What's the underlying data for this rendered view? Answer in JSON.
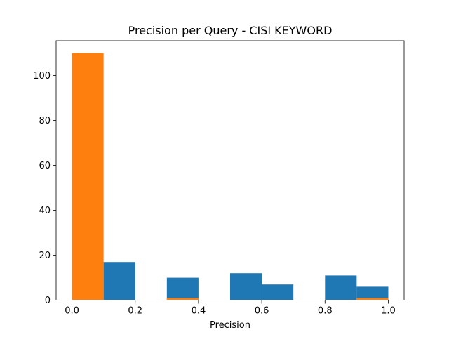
{
  "chart_data": {
    "type": "bar",
    "title": "Precision per Query - CISI KEYWORD",
    "xlabel": "Precision",
    "ylabel": "",
    "xlim": [
      -0.05,
      1.05
    ],
    "ylim": [
      0,
      115.5
    ],
    "xticks": [
      "0.0",
      "0.2",
      "0.4",
      "0.6",
      "0.8",
      "1.0"
    ],
    "yticks": [
      "0",
      "20",
      "40",
      "60",
      "80",
      "100"
    ],
    "bins": [
      [
        0.0,
        0.1
      ],
      [
        0.1,
        0.2
      ],
      [
        0.2,
        0.3
      ],
      [
        0.3,
        0.4
      ],
      [
        0.4,
        0.5
      ],
      [
        0.5,
        0.6
      ],
      [
        0.6,
        0.7
      ],
      [
        0.7,
        0.8
      ],
      [
        0.8,
        0.9
      ],
      [
        0.9,
        1.0
      ]
    ],
    "series": [
      {
        "color": "#1f77b4",
        "values": [
          0,
          17,
          0,
          10,
          0,
          12,
          7,
          0,
          11,
          6
        ]
      },
      {
        "color": "#ff7f0e",
        "values": [
          110,
          0,
          0,
          1,
          0,
          0,
          0,
          0,
          0,
          1
        ]
      }
    ],
    "grid": false,
    "legend": "none"
  }
}
